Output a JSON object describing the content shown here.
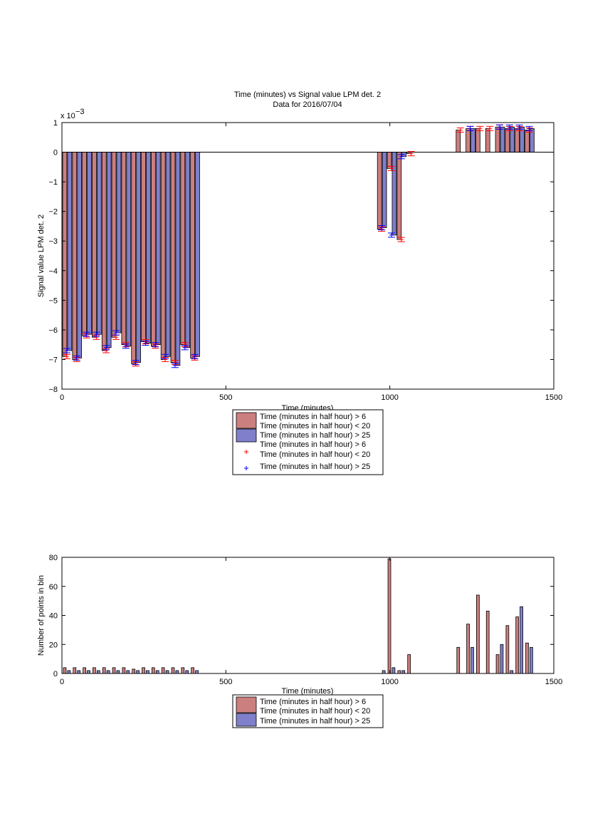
{
  "chart_data": [
    {
      "type": "bar",
      "title": "Time (minutes) vs Signal value LPM det. 2",
      "subtitle": "Data for 2016/07/04",
      "xlabel": "Time (minutes)",
      "ylabel": "Signal value LPM det. 2",
      "xlim": [
        0,
        1500
      ],
      "ylim": [
        -8,
        1
      ],
      "y_multiplier": "x 10",
      "y_exponent": "−3",
      "xticks": [
        "0",
        "500",
        "1000",
        "1500"
      ],
      "yticks": [
        "1",
        "0",
        "−1",
        "−2",
        "−3",
        "−4",
        "−5",
        "−6",
        "−7",
        "−8"
      ],
      "legend_location": "below",
      "legend_entries": [
        "Time (minutes in half hour) > 6",
        "Time (minutes in half hour) < 20",
        "Time (minutes in half hour) > 25",
        "Time (minutes in half hour) > 6",
        "Time (minutes in half hour) < 20",
        "Time (minutes in half hour) > 25"
      ],
      "series": [
        {
          "color": "#cc7f7f",
          "marker_color": "#ff0000",
          "x": [
            15,
            45,
            75,
            105,
            135,
            165,
            195,
            225,
            255,
            285,
            315,
            345,
            375,
            405,
            975,
            1005,
            1035,
            1065,
            1215,
            1245,
            1275,
            1305,
            1335,
            1365,
            1395,
            1425
          ],
          "values": [
            -6.9,
            -7.0,
            -6.2,
            -6.25,
            -6.7,
            -6.25,
            -6.5,
            -7.15,
            -6.4,
            -6.55,
            -7.0,
            -7.1,
            -6.5,
            -6.95,
            -2.6,
            -0.55,
            -2.95,
            -0.05,
            0.75,
            0.8,
            0.8,
            0.8,
            0.85,
            0.8,
            0.8,
            0.75
          ]
        },
        {
          "color": "#7f7fcc",
          "marker_color": "#0000ff",
          "x": [
            15,
            45,
            75,
            105,
            135,
            165,
            195,
            225,
            255,
            285,
            315,
            345,
            375,
            405,
            975,
            1005,
            1035,
            1065,
            1215,
            1245,
            1275,
            1305,
            1335,
            1365,
            1395,
            1425
          ],
          "values": [
            -6.7,
            -6.95,
            -6.15,
            -6.15,
            -6.6,
            -6.1,
            -6.55,
            -7.1,
            -6.45,
            -6.5,
            -6.9,
            -7.2,
            -6.6,
            -6.9,
            -2.55,
            -2.8,
            -0.15,
            null,
            null,
            0.8,
            null,
            null,
            0.85,
            0.85,
            0.85,
            0.8
          ]
        }
      ]
    },
    {
      "type": "bar",
      "xlabel": "Time (minutes)",
      "ylabel": "Number of points in bin",
      "xlim": [
        0,
        1500
      ],
      "ylim": [
        0,
        80
      ],
      "xticks": [
        "0",
        "500",
        "1000",
        "1500"
      ],
      "yticks": [
        "80",
        "60",
        "40",
        "20",
        "0"
      ],
      "legend_location": "below",
      "legend_entries": [
        "Time (minutes in half hour) > 6",
        "Time (minutes in half hour) < 20",
        "Time (minutes in half hour) > 25"
      ],
      "series": [
        {
          "color": "#cc7f7f",
          "x": [
            15,
            45,
            75,
            105,
            135,
            165,
            195,
            225,
            255,
            285,
            315,
            345,
            375,
            405,
            975,
            1005,
            1035,
            1065,
            1215,
            1245,
            1275,
            1305,
            1335,
            1365,
            1395,
            1425
          ],
          "values": [
            4,
            4,
            4,
            4,
            4,
            4,
            4,
            3,
            4,
            4,
            4,
            4,
            4,
            4,
            0,
            79,
            2,
            13,
            18,
            34,
            54,
            43,
            13,
            33,
            39,
            21
          ]
        },
        {
          "color": "#7f7fcc",
          "x": [
            15,
            45,
            75,
            105,
            135,
            165,
            195,
            225,
            255,
            285,
            315,
            345,
            375,
            405,
            975,
            1005,
            1035,
            1065,
            1215,
            1245,
            1275,
            1305,
            1335,
            1365,
            1395,
            1425
          ],
          "values": [
            2,
            2,
            2,
            2,
            2,
            2,
            2,
            2,
            2,
            2,
            2,
            2,
            2,
            2,
            2,
            4,
            2,
            0,
            0,
            18,
            0,
            0,
            20,
            2,
            46,
            18
          ]
        }
      ]
    }
  ]
}
